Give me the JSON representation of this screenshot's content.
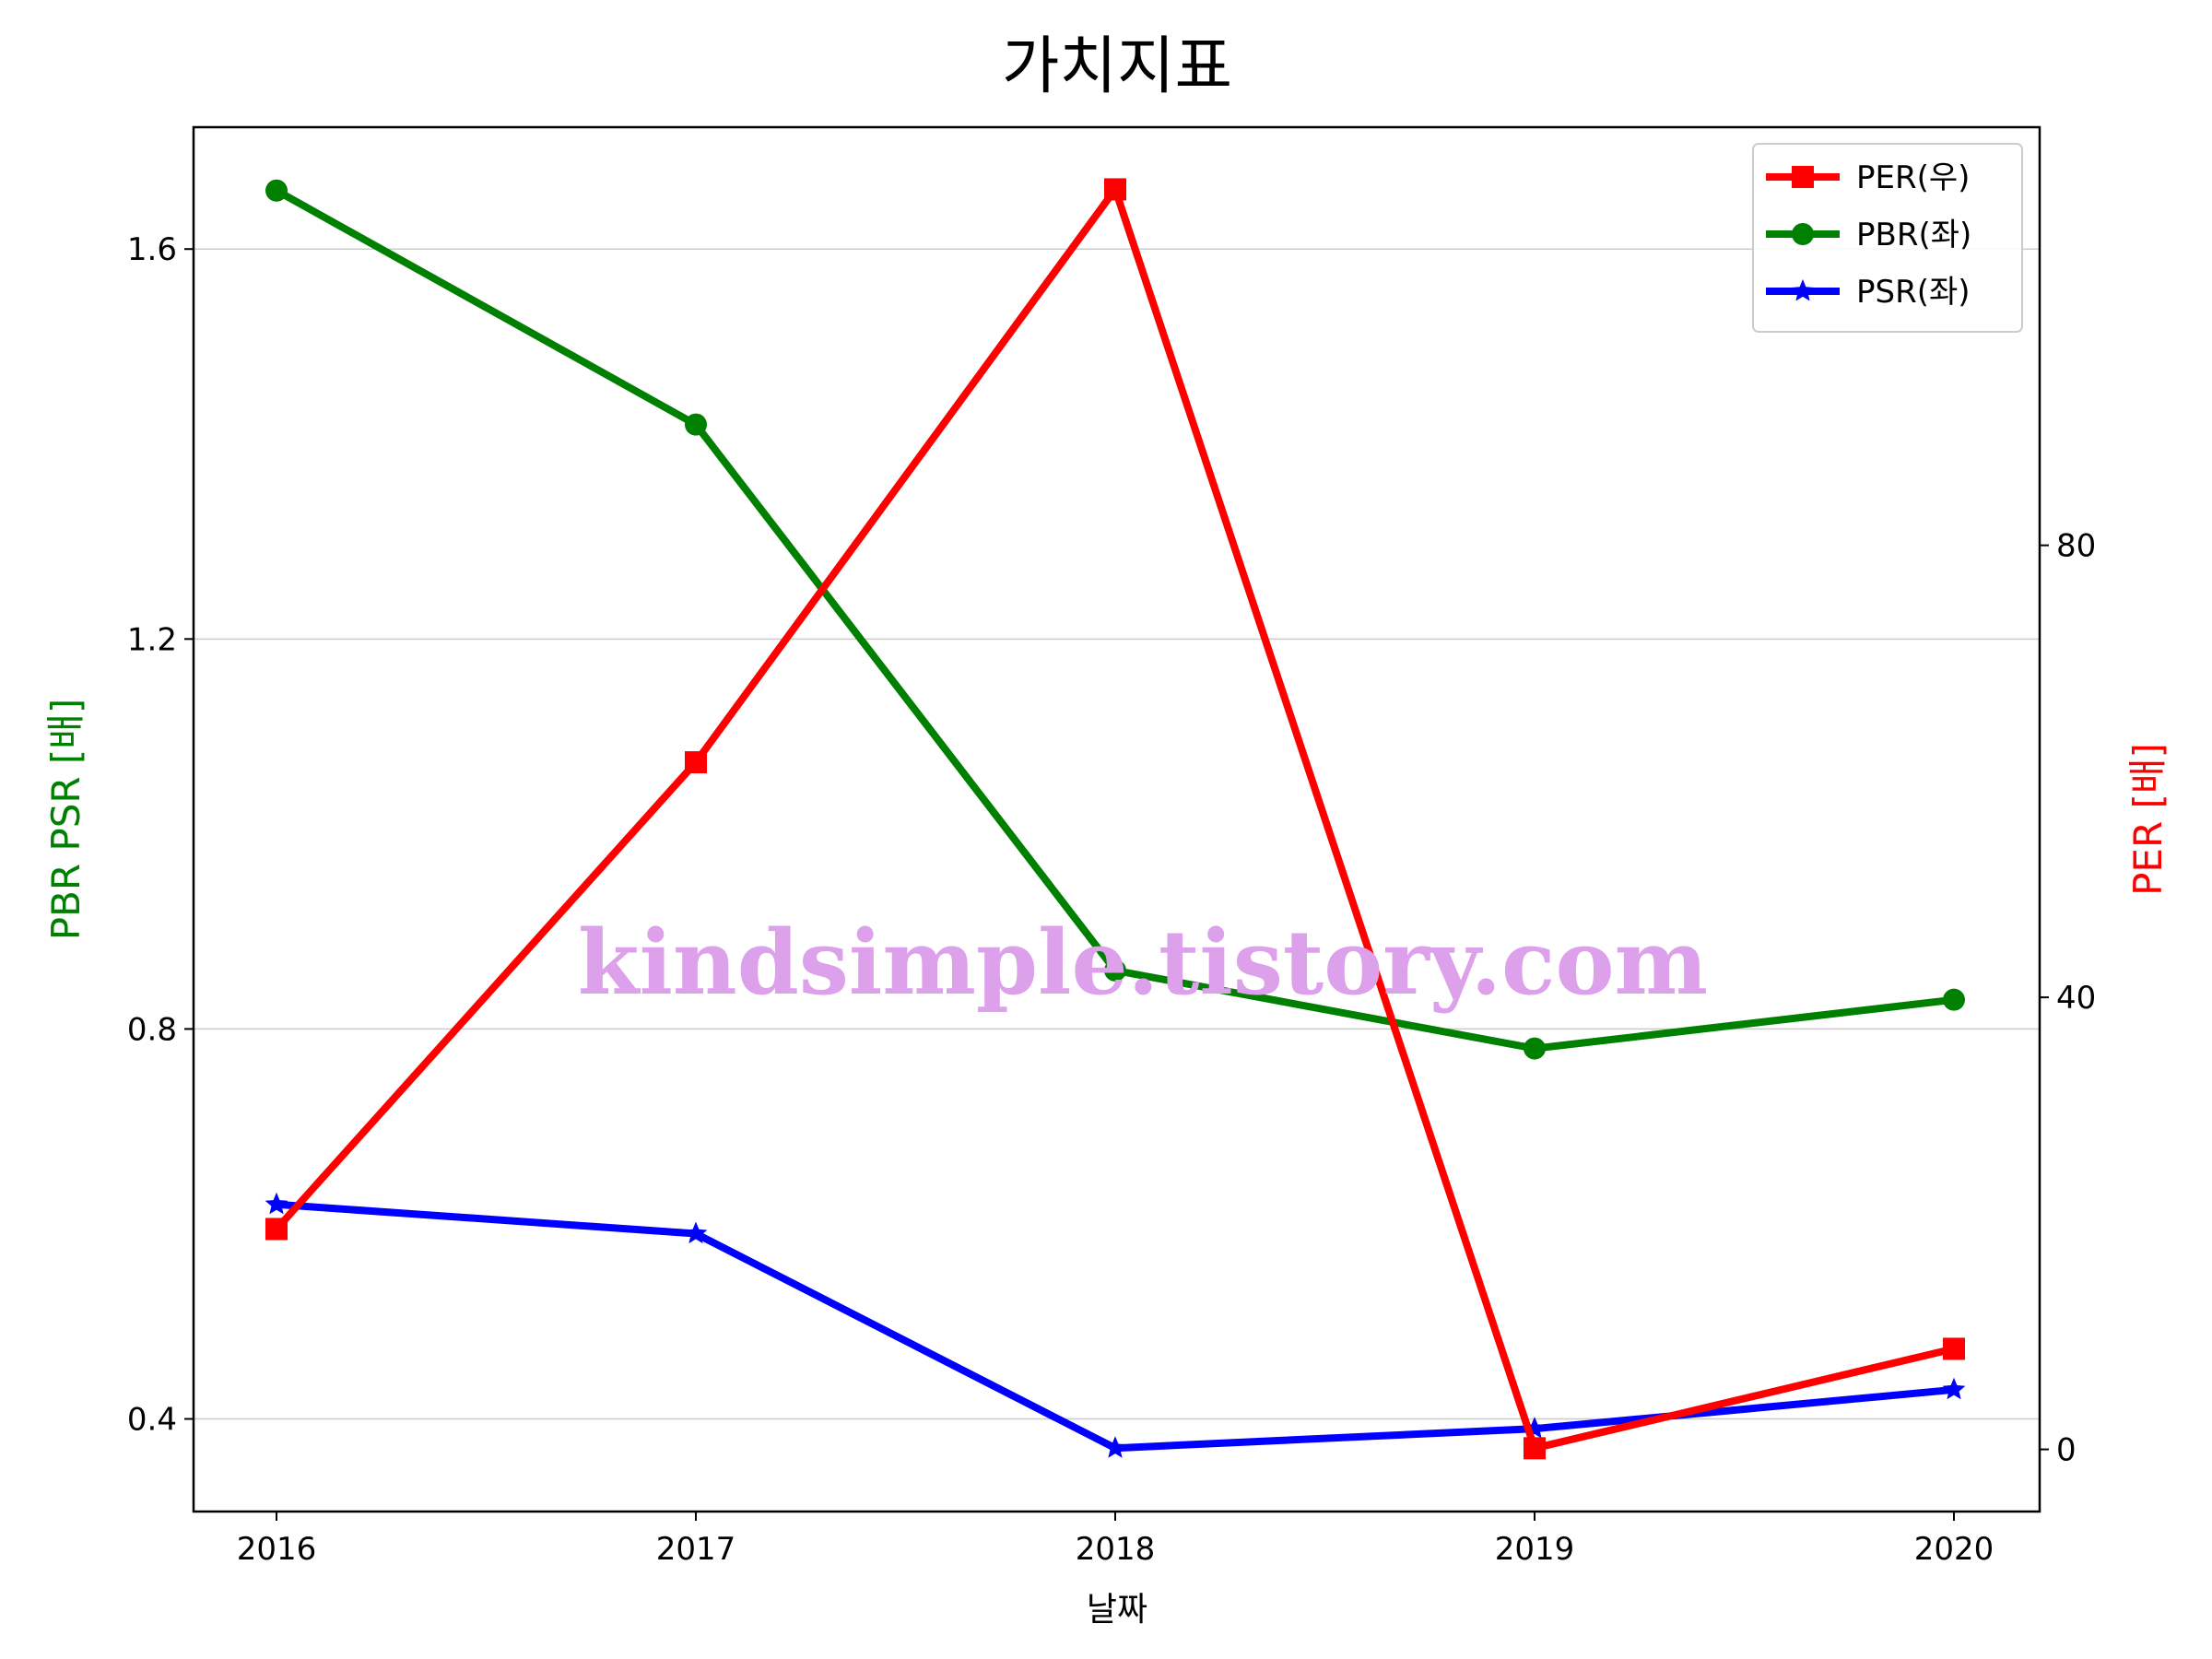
{
  "chart_data": {
    "type": "line",
    "title": "가치지표",
    "xlabel": "날짜",
    "ylabel_left": "PBR PSR [배]",
    "ylabel_right": "PER [배]",
    "categories": [
      "2016",
      "2017",
      "2018",
      "2019",
      "2020"
    ],
    "left_axis": {
      "ylim": [
        0.305,
        1.725
      ],
      "ticks": [
        0.4,
        0.8,
        1.2,
        1.6
      ],
      "tick_labels": [
        "0.4",
        "0.8",
        "1.2",
        "1.6"
      ]
    },
    "right_axis": {
      "ylim": [
        -5.5,
        117
      ],
      "ticks": [
        0,
        40,
        80
      ],
      "tick_labels": [
        "0",
        "40",
        "80"
      ]
    },
    "grid": true,
    "legend_position": "upper right",
    "series": [
      {
        "name": "PER(우)",
        "axis": "right",
        "color": "#ff0000",
        "marker": "square",
        "values": [
          19.5,
          60.8,
          111.5,
          0.1,
          8.9
        ]
      },
      {
        "name": "PBR(좌)",
        "axis": "left",
        "color": "#008000",
        "marker": "circle",
        "values": [
          1.66,
          1.42,
          0.86,
          0.78,
          0.83
        ]
      },
      {
        "name": "PSR(좌)",
        "axis": "left",
        "color": "#0000ff",
        "marker": "star",
        "values": [
          0.62,
          0.59,
          0.37,
          0.39,
          0.43
        ]
      }
    ],
    "label_colors": {
      "ylabel_left": "#008000",
      "ylabel_right": "#ff0000"
    },
    "watermark": {
      "text": "kindsimple.tistory.com",
      "color": "#dda0ea"
    }
  }
}
